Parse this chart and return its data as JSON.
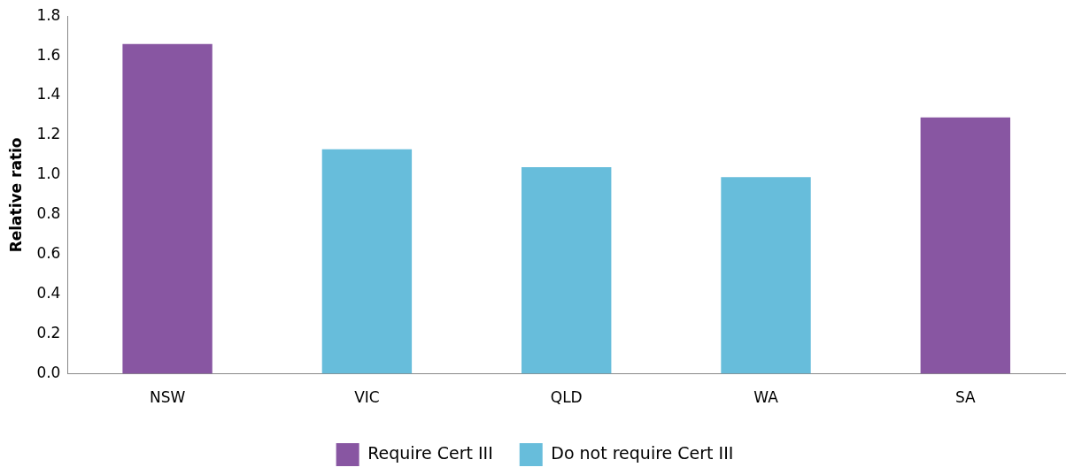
{
  "chart_data": {
    "type": "bar",
    "ylabel": "Relative ratio",
    "categories": [
      "NSW",
      "VIC",
      "QLD",
      "WA",
      "SA"
    ],
    "series": [
      {
        "name": "Require Cert III",
        "color": "#8856a2",
        "values": [
          1.66,
          null,
          null,
          null,
          1.29
        ]
      },
      {
        "name": "Do not require Cert III",
        "color": "#67bddb",
        "values": [
          null,
          1.13,
          1.04,
          0.99,
          null
        ]
      }
    ],
    "ylim": [
      0,
      1.8
    ],
    "yticks": [
      {
        "value": 0,
        "label": "0.0"
      },
      {
        "value": 0.2,
        "label": "0.2"
      },
      {
        "value": 0.4,
        "label": "0.4"
      },
      {
        "value": 0.6,
        "label": "0.6"
      },
      {
        "value": 0.8,
        "label": "0.8"
      },
      {
        "value": 1,
        "label": "1.0"
      },
      {
        "value": 1.2,
        "label": "1.2"
      },
      {
        "value": 1.4,
        "label": "1.4"
      },
      {
        "value": 1.6,
        "label": "1.6"
      },
      {
        "value": 1.8,
        "label": "1.8"
      }
    ],
    "legend": "bottom"
  }
}
